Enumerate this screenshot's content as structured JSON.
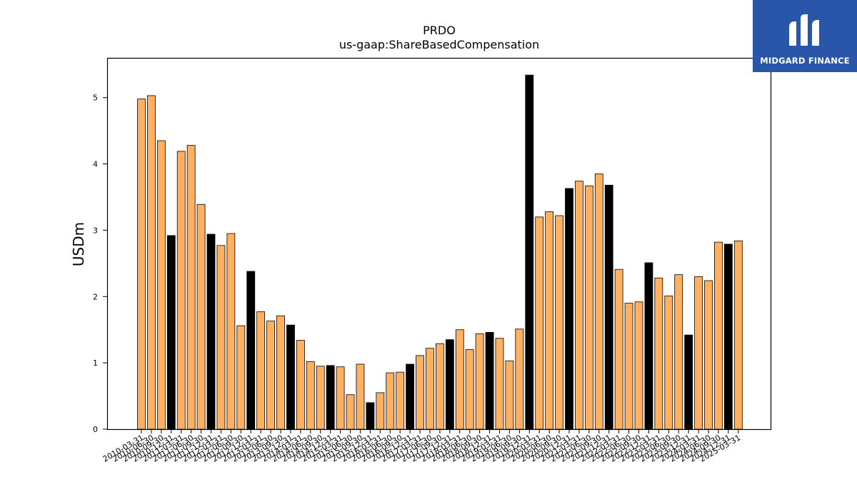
{
  "chart_data": {
    "type": "bar",
    "title": "PRDO",
    "subtitle": "us-gaap:ShareBasedCompensation",
    "xlabel": "",
    "ylabel": "USDm",
    "ylim": [
      0,
      5.6
    ],
    "yticks": [
      0,
      1,
      2,
      3,
      4,
      5
    ],
    "grid": false,
    "colors": {
      "quarter": "#FFB061",
      "year_end": "#000000",
      "edge": "#000000"
    },
    "categories": [
      "2010-03-31",
      "2010-06-30",
      "2010-09-30",
      "2010-12-31",
      "2011-03-31",
      "2011-06-30",
      "2011-09-30",
      "2011-12-31",
      "2012-03-31",
      "2012-06-30",
      "2012-09-30",
      "2012-12-31",
      "2013-03-31",
      "2013-06-30",
      "2013-09-30",
      "2013-12-31",
      "2014-03-31",
      "2014-06-30",
      "2014-09-30",
      "2014-12-31",
      "2015-03-31",
      "2015-06-30",
      "2015-09-30",
      "2015-12-31",
      "2016-03-31",
      "2016-06-30",
      "2016-09-30",
      "2016-12-31",
      "2017-03-31",
      "2017-06-30",
      "2017-09-30",
      "2017-12-31",
      "2018-03-31",
      "2018-06-30",
      "2018-09-30",
      "2018-12-31",
      "2019-03-31",
      "2019-06-30",
      "2019-09-30",
      "2019-12-31",
      "2020-03-31",
      "2020-06-30",
      "2020-09-30",
      "2020-12-31",
      "2021-03-31",
      "2021-06-30",
      "2021-09-30",
      "2021-12-31",
      "2022-03-31",
      "2022-06-30",
      "2022-09-30",
      "2022-12-31",
      "2023-03-31",
      "2023-06-30",
      "2023-09-30",
      "2023-12-31",
      "2024-03-31",
      "2024-06-30",
      "2024-09-30",
      "2024-12-31",
      "2025-03-31"
    ],
    "values": [
      4.98,
      5.03,
      4.35,
      2.92,
      4.19,
      4.28,
      3.39,
      2.94,
      2.77,
      2.95,
      1.56,
      2.38,
      1.77,
      1.63,
      1.71,
      1.57,
      1.34,
      1.02,
      0.95,
      0.96,
      0.94,
      0.52,
      0.98,
      0.4,
      0.55,
      0.85,
      0.86,
      0.98,
      1.11,
      1.22,
      1.29,
      1.35,
      1.5,
      1.2,
      1.44,
      1.46,
      1.37,
      1.03,
      1.51,
      5.34,
      3.2,
      3.28,
      3.22,
      3.63,
      3.74,
      3.67,
      3.85,
      3.68,
      2.41,
      1.9,
      1.92,
      2.51,
      2.28,
      2.01,
      2.33,
      1.42,
      2.3,
      2.24,
      2.82,
      2.79,
      2.84
    ],
    "highlight": [
      false,
      false,
      false,
      true,
      false,
      false,
      false,
      true,
      false,
      false,
      false,
      true,
      false,
      false,
      false,
      true,
      false,
      false,
      false,
      true,
      false,
      false,
      false,
      true,
      false,
      false,
      false,
      true,
      false,
      false,
      false,
      true,
      false,
      false,
      false,
      true,
      false,
      false,
      false,
      true,
      false,
      false,
      false,
      true,
      false,
      false,
      false,
      true,
      false,
      false,
      false,
      true,
      false,
      false,
      false,
      true,
      false,
      false,
      false,
      true,
      false
    ]
  },
  "logo": {
    "text": "MIDGARD FINANCE"
  }
}
